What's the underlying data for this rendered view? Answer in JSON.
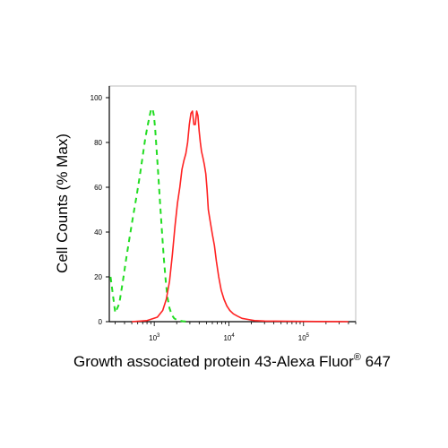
{
  "chart_data": {
    "type": "line",
    "xlabel": "Growth associated protein 43-Alexa Fluor",
    "xlabel_superscript": "®",
    "xlabel_suffix": " 647",
    "ylabel": "Cell Counts (% Max)",
    "xscale": "log",
    "xlim": [
      250,
      500000
    ],
    "ylim": [
      0,
      100
    ],
    "y_ticks": [
      0,
      20,
      40,
      60,
      80,
      100
    ],
    "y_tick_labels": [
      "0",
      "20",
      "40",
      "60",
      "80",
      "100"
    ],
    "x_ticks": [
      {
        "base": "10",
        "exp": "3",
        "value": 1000
      },
      {
        "base": "10",
        "exp": "4",
        "value": 10000
      },
      {
        "base": "10",
        "exp": "5",
        "value": 100000
      }
    ],
    "grid": false,
    "series": [
      {
        "color": "#22dd22",
        "style": "dashed",
        "x": [
          260,
          300,
          340,
          380,
          420,
          470,
          520,
          580,
          640,
          700,
          760,
          820,
          870,
          910,
          950,
          990,
          1030,
          1080,
          1140,
          1200,
          1270,
          1340,
          1420,
          1500,
          1600,
          1720,
          1850,
          2000,
          2200,
          2400,
          2700
        ],
        "y": [
          20,
          4,
          8,
          18,
          28,
          38,
          47,
          56,
          65,
          74,
          82,
          88,
          92,
          95,
          95,
          92,
          86,
          76,
          64,
          52,
          40,
          29,
          19,
          11,
          6,
          3,
          1.5,
          0.8,
          0.4,
          0.2,
          0
        ]
      },
      {
        "color": "#ff2222",
        "style": "solid",
        "x": [
          500,
          800,
          1100,
          1300,
          1450,
          1600,
          1750,
          1900,
          2050,
          2200,
          2350,
          2500,
          2650,
          2800,
          2950,
          3100,
          3250,
          3400,
          3550,
          3700,
          3850,
          4000,
          4150,
          4300,
          4500,
          4700,
          4900,
          5100,
          5300,
          5600,
          6000,
          6400,
          6800,
          7300,
          7900,
          8600,
          9400,
          10300,
          11500,
          13000,
          15000,
          18000,
          22000,
          30000,
          60000,
          150000,
          400000
        ],
        "y": [
          0,
          0.5,
          2,
          5,
          10,
          18,
          30,
          43,
          53,
          60,
          68,
          72,
          75,
          80,
          88,
          93,
          94,
          88,
          88,
          94,
          92,
          85,
          80,
          76,
          73,
          70,
          66,
          59,
          50,
          45,
          39,
          34,
          27,
          20,
          14,
          10,
          7,
          5,
          3.5,
          2.5,
          1.5,
          1,
          0.5,
          0.3,
          0.2,
          0.1,
          0
        ]
      }
    ]
  }
}
